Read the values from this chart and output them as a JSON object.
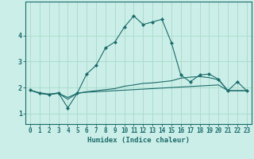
{
  "xlabel": "Humidex (Indice chaleur)",
  "background_color": "#cceee8",
  "grid_color": "#aaddcc",
  "line_color": "#1a6b6b",
  "x_values": [
    0,
    1,
    2,
    3,
    4,
    5,
    6,
    7,
    8,
    9,
    10,
    11,
    12,
    13,
    14,
    15,
    16,
    17,
    18,
    19,
    20,
    21,
    22,
    23
  ],
  "line1_y": [
    1.9,
    1.8,
    1.75,
    1.78,
    1.62,
    1.78,
    1.82,
    1.84,
    1.86,
    1.88,
    1.9,
    1.92,
    1.94,
    1.96,
    1.98,
    2.0,
    2.02,
    2.04,
    2.06,
    2.08,
    2.1,
    1.88,
    1.88,
    1.88
  ],
  "line2_y": [
    1.9,
    1.78,
    1.73,
    1.78,
    1.55,
    1.78,
    1.84,
    1.88,
    1.92,
    1.96,
    2.05,
    2.1,
    2.16,
    2.18,
    2.22,
    2.26,
    2.36,
    2.4,
    2.42,
    2.38,
    2.3,
    1.88,
    1.88,
    1.88
  ],
  "line3_y": [
    1.9,
    1.78,
    1.73,
    1.8,
    1.22,
    1.78,
    2.52,
    2.85,
    3.52,
    3.75,
    4.32,
    4.75,
    4.42,
    4.52,
    4.62,
    3.72,
    2.48,
    2.22,
    2.48,
    2.52,
    2.32,
    1.88,
    2.22,
    1.88
  ],
  "ylim": [
    0.6,
    5.3
  ],
  "xlim": [
    -0.5,
    23.5
  ],
  "yticks": [
    1,
    2,
    3,
    4
  ],
  "xticks": [
    0,
    1,
    2,
    3,
    4,
    5,
    6,
    7,
    8,
    9,
    10,
    11,
    12,
    13,
    14,
    15,
    16,
    17,
    18,
    19,
    20,
    21,
    22,
    23
  ],
  "tick_fontsize": 5.5,
  "xlabel_fontsize": 6.5
}
